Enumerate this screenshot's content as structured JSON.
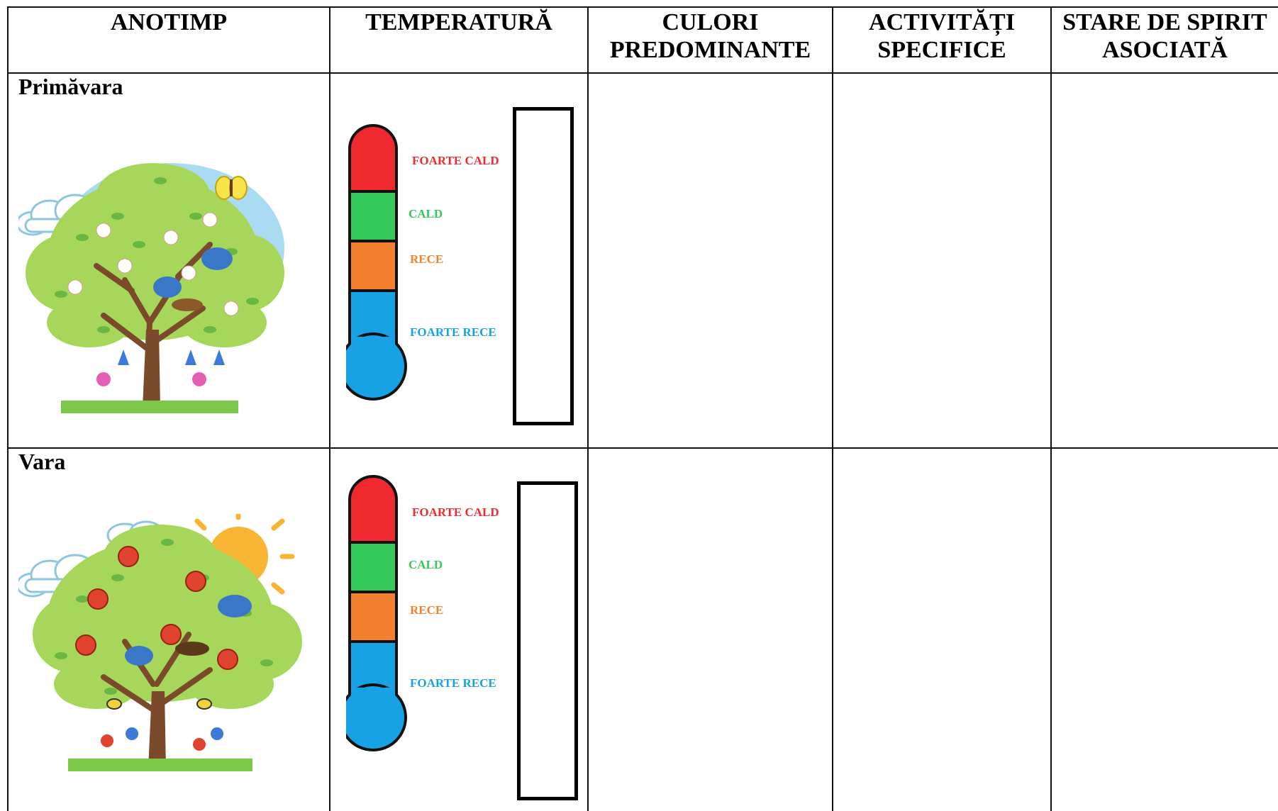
{
  "table": {
    "headers": {
      "season": "ANOTIMP",
      "temperature": "TEMPERATURĂ",
      "colors_line1": "CULORI",
      "colors_line2": "PREDOMINANTE",
      "activities_line1": "ACTIVITĂȚI",
      "activities_line2": "SPECIFICE",
      "mood_line1": "STARE DE SPIRIT",
      "mood_line2": "ASOCIATĂ"
    },
    "rows": [
      {
        "season": "Primăvara",
        "illustration_icon": "spring-tree-icon",
        "thermometer_labels": {
          "very_hot": "FOARTE CALD",
          "hot": "CALD",
          "cold": "RECE",
          "very_cold": "FOARTE RECE"
        }
      },
      {
        "season": "Vara",
        "illustration_icon": "summer-tree-icon",
        "thermometer_labels": {
          "very_hot": "FOARTE CALD",
          "hot": "CALD",
          "cold": "RECE",
          "very_cold": "FOARTE RECE"
        }
      }
    ]
  },
  "colors": {
    "very_hot": "#ee2a2f",
    "hot": "#35c95b",
    "cold": "#f3802e",
    "very_cold": "#17a2e6",
    "sky": "#a9dcf2",
    "foliage": "#a6d65a",
    "leaf": "#69b843",
    "trunk": "#7a4a2a"
  }
}
